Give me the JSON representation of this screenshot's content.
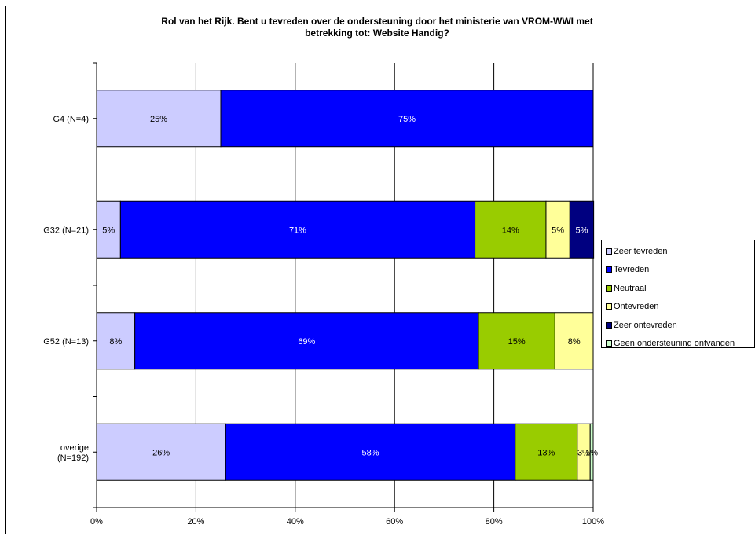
{
  "chart_data": {
    "type": "bar",
    "orientation": "horizontal",
    "stacked": "percent",
    "title": "Rol van het Rijk. Bent u tevreden over de ondersteuning door het ministerie van VROM-WWI met betrekking tot: Website Handig?",
    "title_lines": [
      "Rol van het Rijk. Bent u tevreden over de ondersteuning door het ministerie van VROM-WWI met",
      "betrekking tot: Website Handig?"
    ],
    "categories": [
      "G4 (N=4)",
      "G32 (N=21)",
      "G52 (N=13)",
      "overige (N=192)"
    ],
    "category_lines": [
      [
        "G4 (N=4)"
      ],
      [
        "G32 (N=21)"
      ],
      [
        "G52 (N=13)"
      ],
      [
        "overige",
        "(N=192)"
      ]
    ],
    "xlim": [
      0,
      100
    ],
    "xticks": [
      "0%",
      "20%",
      "40%",
      "60%",
      "80%",
      "100%"
    ],
    "grid": true,
    "legend_position": "right",
    "series": [
      {
        "name": "Zeer tevreden",
        "color": "#ccccff",
        "values": [
          25,
          4.8,
          7.7,
          26
        ],
        "labels": [
          "25%",
          "5%",
          "8%",
          "26%"
        ]
      },
      {
        "name": "Tevreden",
        "color": "#0000ff",
        "values": [
          75,
          71.4,
          69.2,
          58.3
        ],
        "labels": [
          "75%",
          "71%",
          "69%",
          "58%"
        ]
      },
      {
        "name": "Neutraal",
        "color": "#99cc00",
        "values": [
          0,
          14.3,
          15.4,
          12.5
        ],
        "labels": [
          "",
          "14%",
          "15%",
          "13%"
        ]
      },
      {
        "name": "Ontevreden",
        "color": "#ffff99",
        "values": [
          0,
          4.8,
          7.7,
          2.6
        ],
        "labels": [
          "",
          "5%",
          "8%",
          "3%"
        ]
      },
      {
        "name": "Zeer ontevreden",
        "color": "#000080",
        "values": [
          0,
          4.8,
          0,
          0
        ],
        "labels": [
          "",
          "5%",
          "",
          ""
        ]
      },
      {
        "name": "Geen ondersteuning ontvangen",
        "color": "#ccffcc",
        "values": [
          0,
          0,
          0,
          0.6
        ],
        "labels": [
          "",
          "",
          "",
          "1%"
        ]
      }
    ]
  }
}
